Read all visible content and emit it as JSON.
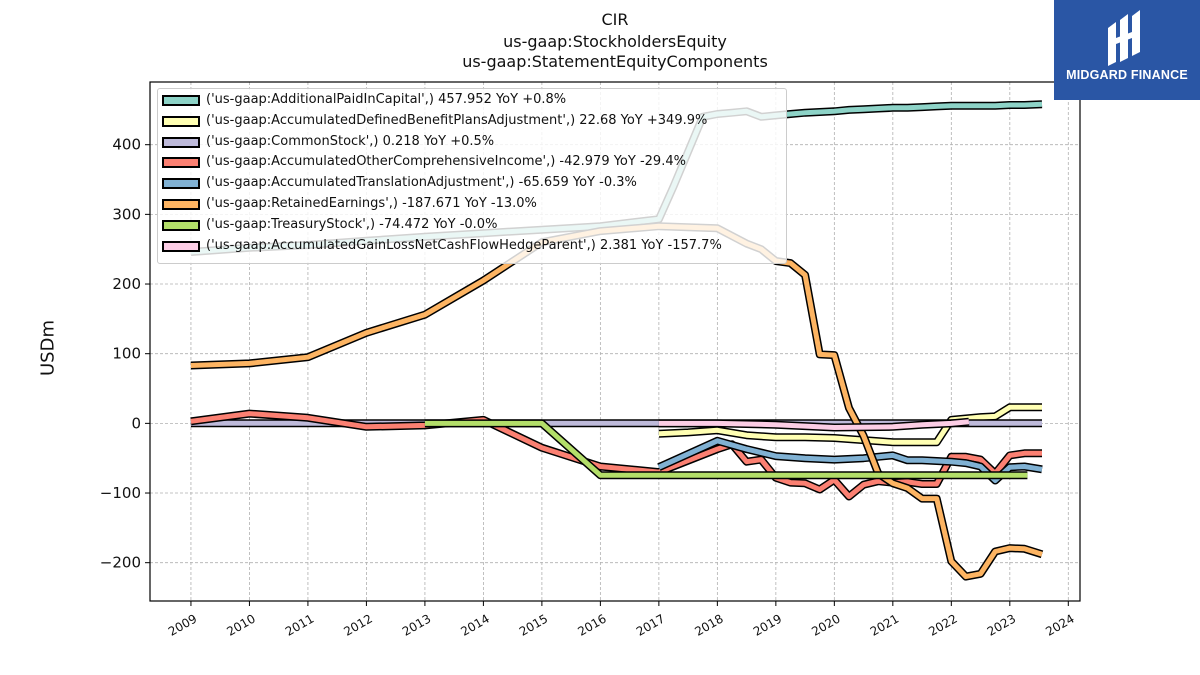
{
  "header": {
    "title_line1": "CIR",
    "title_line2": "us-gaap:StockholdersEquity",
    "title_line3": "us-gaap:StatementEquityComponents"
  },
  "logo": {
    "text": "MIDGARD FINANCE"
  },
  "chart_data": {
    "type": "line",
    "ylabel": "USDm",
    "xlim": [
      2008.3,
      2024.2
    ],
    "ylim": [
      -255,
      490
    ],
    "grid": true,
    "legend_position": "upper-left",
    "x_ticks": [
      2009,
      2010,
      2011,
      2012,
      2013,
      2014,
      2015,
      2016,
      2017,
      2018,
      2019,
      2020,
      2021,
      2022,
      2023,
      2024
    ],
    "y_ticks": [
      -200,
      -100,
      0,
      100,
      200,
      300,
      400
    ],
    "series": [
      {
        "name": "('us-gaap:AdditionalPaidInCapital',) 457.952 YoY +0.8%",
        "color": "#8dd3c7",
        "points": [
          [
            2009,
            246
          ],
          [
            2010,
            252
          ],
          [
            2011,
            256
          ],
          [
            2012,
            262
          ],
          [
            2013,
            268
          ],
          [
            2014,
            273
          ],
          [
            2015,
            278
          ],
          [
            2016,
            283
          ],
          [
            2017,
            293
          ],
          [
            2017.25,
            340
          ],
          [
            2017.5,
            390
          ],
          [
            2017.75,
            440
          ],
          [
            2018,
            444
          ],
          [
            2018.25,
            446
          ],
          [
            2018.5,
            448
          ],
          [
            2018.75,
            440
          ],
          [
            2019,
            442
          ],
          [
            2019.25,
            444
          ],
          [
            2019.5,
            446
          ],
          [
            2019.75,
            447
          ],
          [
            2020,
            448
          ],
          [
            2020.25,
            450
          ],
          [
            2020.5,
            451
          ],
          [
            2020.75,
            452
          ],
          [
            2021,
            453
          ],
          [
            2021.25,
            453
          ],
          [
            2021.5,
            454
          ],
          [
            2021.75,
            455
          ],
          [
            2022,
            456
          ],
          [
            2022.25,
            456
          ],
          [
            2022.5,
            456
          ],
          [
            2022.75,
            456
          ],
          [
            2023,
            457
          ],
          [
            2023.25,
            457
          ],
          [
            2023.55,
            458
          ]
        ]
      },
      {
        "name": "('us-gaap:AccumulatedDefinedBenefitPlansAdjustment',) 22.68 YoY +349.9%",
        "color": "#ffffb3",
        "points": [
          [
            2017,
            -15
          ],
          [
            2017.5,
            -13
          ],
          [
            2018,
            -10
          ],
          [
            2018.5,
            -17
          ],
          [
            2019,
            -20
          ],
          [
            2019.5,
            -20
          ],
          [
            2020,
            -21
          ],
          [
            2020.5,
            -24
          ],
          [
            2021,
            -27
          ],
          [
            2021.5,
            -27
          ],
          [
            2021.75,
            -27
          ],
          [
            2022,
            5
          ],
          [
            2022.25,
            7
          ],
          [
            2022.5,
            9
          ],
          [
            2022.75,
            10
          ],
          [
            2023,
            23
          ],
          [
            2023.25,
            23
          ],
          [
            2023.55,
            23
          ]
        ]
      },
      {
        "name": "('us-gaap:CommonStock',) 0.218 YoY +0.5%",
        "color": "#bebada",
        "points": [
          [
            2009,
            0.2
          ],
          [
            2012,
            0.2
          ],
          [
            2015,
            0.2
          ],
          [
            2018,
            0.2
          ],
          [
            2021,
            0.2
          ],
          [
            2023.55,
            0.2
          ]
        ]
      },
      {
        "name": "('us-gaap:AccumulatedOtherComprehensiveIncome',) -42.979 YoY -29.4%",
        "color": "#fb8072",
        "points": [
          [
            2009,
            3
          ],
          [
            2010,
            14
          ],
          [
            2011,
            8
          ],
          [
            2012,
            -5
          ],
          [
            2013,
            -3
          ],
          [
            2014,
            5
          ],
          [
            2015,
            -35
          ],
          [
            2016,
            -62
          ],
          [
            2017,
            -70
          ],
          [
            2018,
            -37
          ],
          [
            2018.25,
            -30
          ],
          [
            2018.5,
            -55
          ],
          [
            2018.75,
            -52
          ],
          [
            2019,
            -78
          ],
          [
            2019.25,
            -85
          ],
          [
            2019.5,
            -86
          ],
          [
            2019.75,
            -95
          ],
          [
            2020,
            -81
          ],
          [
            2020.25,
            -105
          ],
          [
            2020.5,
            -88
          ],
          [
            2020.75,
            -83
          ],
          [
            2021,
            -85
          ],
          [
            2021.25,
            -84
          ],
          [
            2021.5,
            -87
          ],
          [
            2021.75,
            -87
          ],
          [
            2022,
            -48
          ],
          [
            2022.25,
            -48
          ],
          [
            2022.5,
            -52
          ],
          [
            2022.75,
            -72
          ],
          [
            2023,
            -46
          ],
          [
            2023.25,
            -43
          ],
          [
            2023.55,
            -43
          ]
        ]
      },
      {
        "name": "('us-gaap:AccumulatedTranslationAdjustment',) -65.659 YoY -0.3%",
        "color": "#80b1d3",
        "points": [
          [
            2017,
            -63
          ],
          [
            2018,
            -25
          ],
          [
            2018.5,
            -37
          ],
          [
            2019,
            -47
          ],
          [
            2019.5,
            -50
          ],
          [
            2020,
            -52
          ],
          [
            2020.5,
            -50
          ],
          [
            2021,
            -46
          ],
          [
            2021.25,
            -53
          ],
          [
            2021.5,
            -53
          ],
          [
            2021.75,
            -54
          ],
          [
            2022,
            -55
          ],
          [
            2022.25,
            -57
          ],
          [
            2022.5,
            -62
          ],
          [
            2022.75,
            -82
          ],
          [
            2023,
            -63
          ],
          [
            2023.25,
            -62
          ],
          [
            2023.55,
            -66
          ]
        ]
      },
      {
        "name": "('us-gaap:RetainedEarnings',) -187.671 YoY -13.0%",
        "color": "#fdb462",
        "points": [
          [
            2009,
            83
          ],
          [
            2010,
            86
          ],
          [
            2011,
            95
          ],
          [
            2012,
            130
          ],
          [
            2013,
            156
          ],
          [
            2014,
            205
          ],
          [
            2015,
            260
          ],
          [
            2016,
            276
          ],
          [
            2017,
            283
          ],
          [
            2018,
            280
          ],
          [
            2018.5,
            258
          ],
          [
            2018.75,
            250
          ],
          [
            2019,
            233
          ],
          [
            2019.25,
            230
          ],
          [
            2019.5,
            213
          ],
          [
            2019.75,
            99
          ],
          [
            2020,
            98
          ],
          [
            2020.25,
            22
          ],
          [
            2020.5,
            -18
          ],
          [
            2020.75,
            -72
          ],
          [
            2021,
            -86
          ],
          [
            2021.25,
            -93
          ],
          [
            2021.5,
            -108
          ],
          [
            2021.75,
            -108
          ],
          [
            2022,
            -198
          ],
          [
            2022.25,
            -220
          ],
          [
            2022.5,
            -216
          ],
          [
            2022.75,
            -184
          ],
          [
            2023,
            -179
          ],
          [
            2023.25,
            -180
          ],
          [
            2023.55,
            -188
          ]
        ]
      },
      {
        "name": "('us-gaap:TreasuryStock',) -74.472 YoY -0.0%",
        "color": "#b3de69",
        "points": [
          [
            2013,
            0
          ],
          [
            2015,
            0
          ],
          [
            2016,
            -74.5
          ],
          [
            2017,
            -74.5
          ],
          [
            2018,
            -74.5
          ],
          [
            2020,
            -74.5
          ],
          [
            2022,
            -74.5
          ],
          [
            2023.3,
            -74.5
          ]
        ]
      },
      {
        "name": "('us-gaap:AccumulatedGainLossNetCashFlowHedgeParent',) 2.381 YoY -157.7%",
        "color": "#fccde5",
        "points": [
          [
            2017,
            0
          ],
          [
            2018,
            0
          ],
          [
            2019,
            -2
          ],
          [
            2020,
            -6
          ],
          [
            2021,
            -5
          ],
          [
            2021.5,
            -2
          ],
          [
            2022,
            0
          ],
          [
            2022.3,
            2.4
          ]
        ]
      }
    ]
  }
}
